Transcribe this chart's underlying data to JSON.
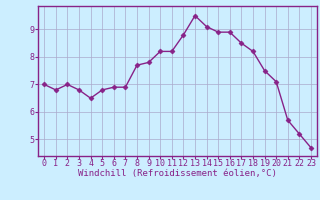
{
  "x": [
    0,
    1,
    2,
    3,
    4,
    5,
    6,
    7,
    8,
    9,
    10,
    11,
    12,
    13,
    14,
    15,
    16,
    17,
    18,
    19,
    20,
    21,
    22,
    23
  ],
  "y": [
    7.0,
    6.8,
    7.0,
    6.8,
    6.5,
    6.8,
    6.9,
    6.9,
    7.7,
    7.8,
    8.2,
    8.2,
    8.8,
    9.5,
    9.1,
    8.9,
    8.9,
    8.5,
    8.2,
    7.5,
    7.1,
    5.7,
    5.2,
    4.7
  ],
  "line_color": "#882288",
  "marker": "D",
  "markersize": 2.5,
  "linewidth": 1.0,
  "xlabel": "Windchill (Refroidissement éolien,°C)",
  "xlabel_fontsize": 6.5,
  "bg_color": "#cceeff",
  "grid_color": "#aaaacc",
  "xlim": [
    -0.5,
    23.5
  ],
  "ylim": [
    4.4,
    9.85
  ],
  "yticks": [
    5,
    6,
    7,
    8,
    9
  ],
  "xticks": [
    0,
    1,
    2,
    3,
    4,
    5,
    6,
    7,
    8,
    9,
    10,
    11,
    12,
    13,
    14,
    15,
    16,
    17,
    18,
    19,
    20,
    21,
    22,
    23
  ],
  "tick_fontsize": 6.0,
  "spine_color": "#882288",
  "axis_bg_color": "#cceeff"
}
